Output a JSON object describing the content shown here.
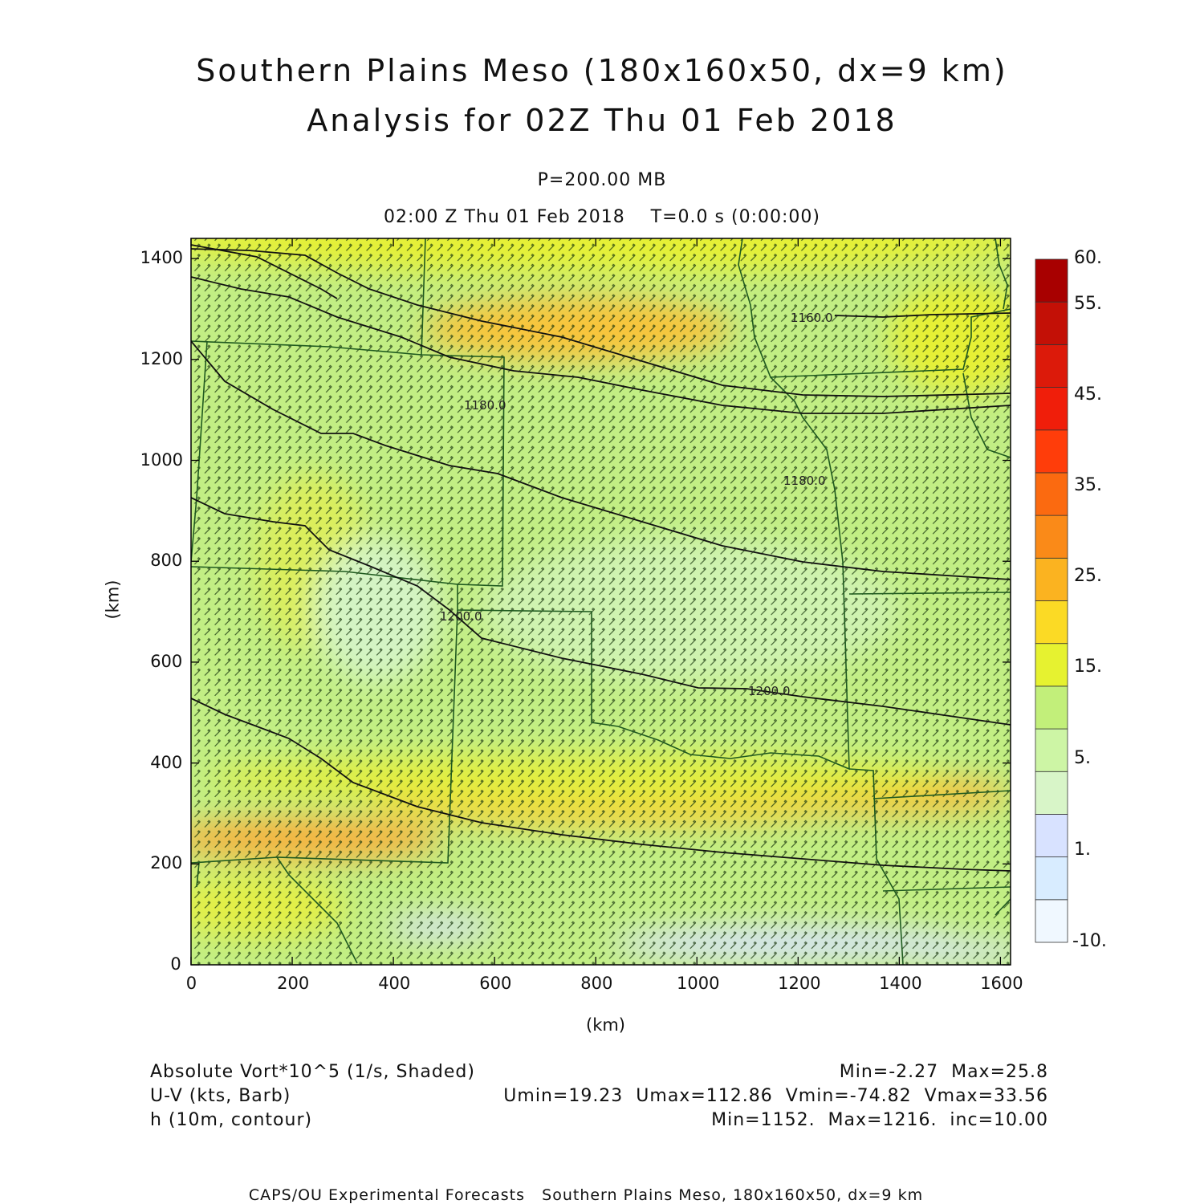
{
  "title_line1": "Southern Plains Meso (180x160x50, dx=9 km)",
  "title_line2": "Analysis for 02Z Thu 01 Feb 2018",
  "level_label": "P=200.00 MB",
  "time_label": "02:00 Z Thu 01 Feb 2018    T=0.0 s (0:00:00)",
  "axes": {
    "x_label": "(km)",
    "y_label": "(km)",
    "x_ticks": [
      "0",
      "200",
      "400",
      "600",
      "800",
      "1000",
      "1200",
      "1400",
      "1600"
    ],
    "y_ticks": [
      "0",
      "200",
      "400",
      "600",
      "800",
      "1000",
      "1200",
      "1400"
    ],
    "x_range": [
      0,
      1620
    ],
    "y_range": [
      0,
      1440
    ]
  },
  "colorbar": {
    "labels": [
      "60.",
      "55.",
      "45.",
      "35.",
      "25.",
      "15.",
      "5.",
      "1.",
      "-10."
    ],
    "colors": [
      "#f0f8ff",
      "#d8ecff",
      "#d8e2ff",
      "#d8f5c8",
      "#cdf5a5",
      "#c2ef7a",
      "#e6f230",
      "#fbda25",
      "#fbb320",
      "#fa8a18",
      "#fb6a10",
      "#ff3d0a",
      "#f01e0a",
      "#dc1a0a",
      "#c31006",
      "#a80000"
    ]
  },
  "contours": [
    {
      "label": "1160.0"
    },
    {
      "label": "1180.0"
    },
    {
      "label": "1180.0"
    },
    {
      "label": "1200.0"
    },
    {
      "label": "1200.0"
    }
  ],
  "legend": {
    "field1_name": "Absolute Vort*10^5 (1/s, Shaded)",
    "field1_stats": "Min=-2.27  Max=25.8",
    "field2_name": "U-V (kts, Barb)",
    "field2_stats": "Umin=19.23  Umax=112.86  Vmin=-74.82  Vmax=33.56",
    "field3_name": "h (10m, contour)",
    "field3_stats": "Min=1152.  Max=1216.  inc=10.00"
  },
  "footer": "CAPS/OU Experimental Forecasts   Southern Plains Meso, 180x160x50, dx=9 km"
}
